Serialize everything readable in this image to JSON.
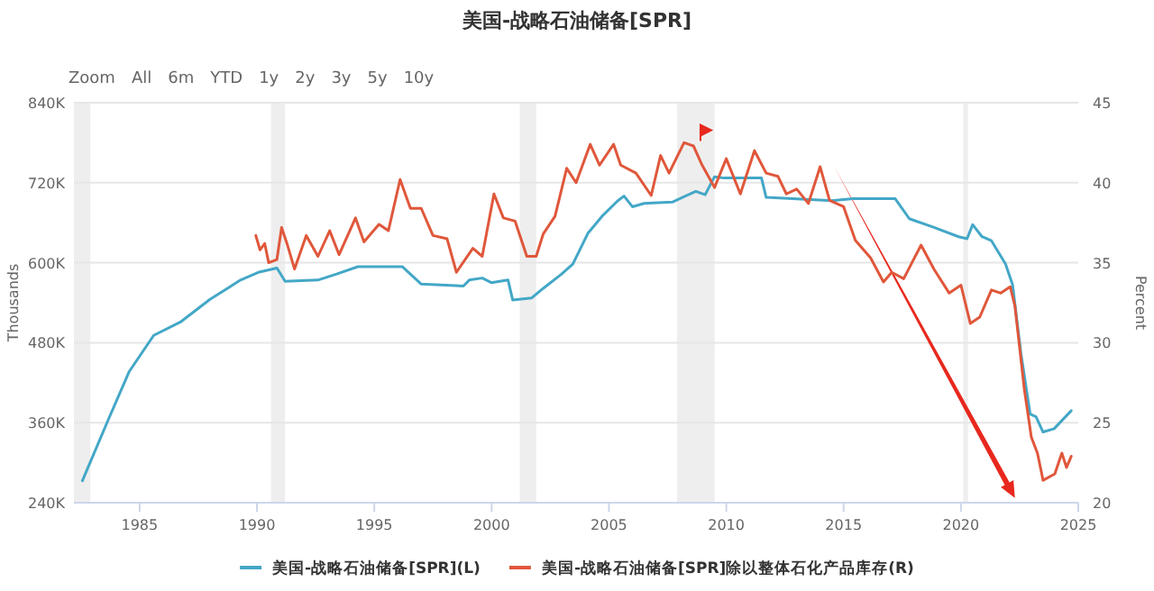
{
  "chart_data": {
    "type": "line",
    "title": "美国-战略石油储备[SPR]",
    "ylabel": "Thousands",
    "y2label": "Percent",
    "annotations": [
      "Zoom",
      "All",
      "6m",
      "YTD",
      "1y",
      "2y",
      "3y",
      "5y",
      "10y"
    ],
    "xlim": [
      1982.2,
      2025
    ],
    "xticks": [
      1985,
      1990,
      1995,
      2000,
      2005,
      2010,
      2015,
      2020,
      2025
    ],
    "ylim": [
      240,
      840
    ],
    "yticks": [
      {
        "value": 240,
        "label": "240K"
      },
      {
        "value": 360,
        "label": "360K"
      },
      {
        "value": 480,
        "label": "480K"
      },
      {
        "value": 600,
        "label": "600K"
      },
      {
        "value": 720,
        "label": "720K"
      },
      {
        "value": 840,
        "label": "840K"
      }
    ],
    "y2lim": [
      20,
      45
    ],
    "y2ticks": [
      20,
      25,
      30,
      35,
      40,
      45
    ],
    "grid": "y",
    "legend": "bottom",
    "marker": "none",
    "line_style": "solid",
    "bands": [
      {
        "axis": "x",
        "from": 1982.2,
        "to": 1982.9,
        "color": "#eeeeee"
      },
      {
        "axis": "x",
        "from": 1990.6,
        "to": 1991.2,
        "color": "#eeeeee"
      },
      {
        "axis": "x",
        "from": 2001.2,
        "to": 2001.9,
        "color": "#eeeeee"
      },
      {
        "axis": "x",
        "from": 2007.9,
        "to": 2009.5,
        "color": "#eeeeee"
      },
      {
        "axis": "x",
        "from": 2020.1,
        "to": 2020.3,
        "color": "#eeeeee"
      }
    ],
    "series": [
      {
        "name": "美国-战略石油储备[SPR](L)",
        "color": "#43a7c7",
        "x": [
          1982.56,
          1983.67,
          1984.56,
          1985.6,
          1986.74,
          1988.0,
          1989.3,
          1990.1,
          1990.85,
          1991.2,
          1992.6,
          1993.4,
          1994.3,
          1996.2,
          1997.0,
          1998.8,
          1999.05,
          1999.6,
          2000.0,
          2000.7,
          2000.9,
          2001.7,
          2002.18,
          2002.95,
          2003.46,
          2004.1,
          2004.74,
          2005.38,
          2005.64,
          2006.0,
          2006.5,
          2007.7,
          2008.7,
          2009.1,
          2009.5,
          2009.9,
          2011.5,
          2011.7,
          2014.5,
          2015.4,
          2017.2,
          2017.8,
          2018.85,
          2019.9,
          2020.26,
          2020.5,
          2020.9,
          2021.3,
          2021.9,
          2022.2,
          2022.56,
          2022.95,
          2023.2,
          2023.5,
          2023.97,
          2024.7
        ],
        "values": [
          273,
          365,
          437,
          491,
          511,
          545,
          574,
          586,
          592,
          572,
          574,
          583,
          594,
          594,
          568,
          565,
          574,
          577,
          570,
          574,
          544,
          547,
          561,
          582,
          598,
          644,
          671,
          693,
          700,
          684,
          689,
          691,
          707,
          702,
          729,
          727,
          727,
          698,
          693,
          696,
          696,
          666,
          653,
          639,
          636,
          657,
          639,
          633,
          598,
          567,
          463,
          373,
          369,
          346,
          351,
          378
        ]
      },
      {
        "name": "美国-战略石油储备[SPR]除以整体石化产品库存(R)",
        "color": "#e0573b",
        "axis": "y2",
        "x": [
          1989.95,
          1990.13,
          1990.33,
          1990.5,
          1990.85,
          1991.05,
          1991.3,
          1991.6,
          1992.1,
          1992.6,
          1993.1,
          1993.5,
          1994.2,
          1994.56,
          1995.2,
          1995.6,
          1996.1,
          1996.54,
          1997.0,
          1997.5,
          1998.1,
          1998.5,
          1999.2,
          1999.6,
          2000.1,
          2000.5,
          2001.0,
          2001.5,
          2001.9,
          2002.2,
          2002.7,
          2003.2,
          2003.6,
          2004.2,
          2004.6,
          2005.2,
          2005.5,
          2006.15,
          2006.8,
          2007.2,
          2007.56,
          2008.2,
          2008.6,
          2008.97,
          2009.5,
          2010.0,
          2010.6,
          2011.2,
          2011.7,
          2012.2,
          2012.56,
          2013.0,
          2013.5,
          2014.0,
          2014.4,
          2015.0,
          2015.5,
          2016.15,
          2016.7,
          2017.05,
          2017.56,
          2018.3,
          2018.85,
          2019.5,
          2020.0,
          2020.4,
          2020.8,
          2021.3,
          2021.7,
          2022.1,
          2022.3,
          2022.7,
          2023.0,
          2023.26,
          2023.5,
          2024.0,
          2024.3,
          2024.5,
          2024.7
        ],
        "values": [
          36.7,
          35.8,
          36.2,
          35.0,
          35.2,
          37.2,
          36.1,
          34.6,
          36.7,
          35.4,
          37.0,
          35.5,
          37.8,
          36.3,
          37.4,
          37.0,
          40.2,
          38.4,
          38.4,
          36.7,
          36.5,
          34.4,
          35.9,
          35.4,
          39.3,
          37.8,
          37.6,
          35.4,
          35.4,
          36.8,
          37.9,
          40.9,
          40.0,
          42.4,
          41.1,
          42.4,
          41.1,
          40.6,
          39.2,
          41.7,
          40.6,
          42.5,
          42.3,
          41.1,
          39.7,
          41.5,
          39.3,
          42.0,
          40.6,
          40.4,
          39.3,
          39.6,
          38.7,
          41.0,
          38.9,
          38.5,
          36.4,
          35.3,
          33.8,
          34.4,
          34.0,
          36.1,
          34.6,
          33.1,
          33.6,
          31.2,
          31.6,
          33.3,
          33.1,
          33.5,
          32.3,
          27.1,
          24.1,
          23.1,
          21.4,
          21.8,
          23.1,
          22.2,
          22.9
        ]
      }
    ]
  }
}
